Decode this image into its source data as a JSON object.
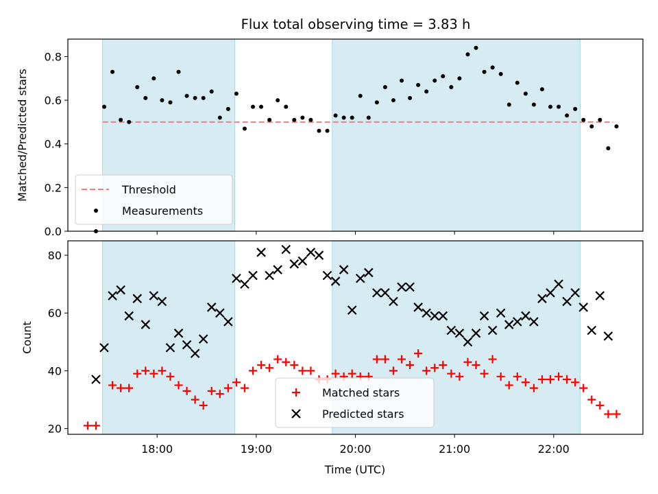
{
  "chart_data": [
    {
      "type": "scatter",
      "title": "Flux total observing time = 3.83 h",
      "xlabel": "",
      "ylabel": "Matched/Predicted stars",
      "xlim": [
        "17:06",
        "22:54"
      ],
      "ylim": [
        0,
        0.88
      ],
      "x_axis": "time (UTC)",
      "xticks": [
        "18:00",
        "19:00",
        "20:00",
        "21:00",
        "22:00"
      ],
      "yticks": [
        "0.0",
        "0.2",
        "0.4",
        "0.6",
        "0.8"
      ],
      "shaded_intervals": [
        [
          "17:27",
          "18:47"
        ],
        [
          "19:46",
          "22:16"
        ]
      ],
      "shade_color": "#add8e6",
      "legend_position": "lower left",
      "threshold": {
        "name": "Threshold",
        "value": 0.5,
        "range": [
          "17:27",
          "22:36"
        ],
        "color": "#f08080",
        "style": "dashed"
      },
      "series": [
        {
          "name": "Measurements",
          "color": "#000000",
          "marker": "dot",
          "points": [
            [
              "17:23",
              0.0
            ],
            [
              "17:28",
              0.57
            ],
            [
              "17:33",
              0.73
            ],
            [
              "17:38",
              0.51
            ],
            [
              "17:43",
              0.5
            ],
            [
              "17:48",
              0.66
            ],
            [
              "17:53",
              0.61
            ],
            [
              "17:58",
              0.7
            ],
            [
              "18:03",
              0.6
            ],
            [
              "18:08",
              0.59
            ],
            [
              "18:13",
              0.73
            ],
            [
              "18:18",
              0.62
            ],
            [
              "18:23",
              0.61
            ],
            [
              "18:28",
              0.61
            ],
            [
              "18:33",
              0.64
            ],
            [
              "18:38",
              0.52
            ],
            [
              "18:43",
              0.56
            ],
            [
              "18:48",
              0.63
            ],
            [
              "18:53",
              0.47
            ],
            [
              "18:58",
              0.57
            ],
            [
              "19:03",
              0.57
            ],
            [
              "19:08",
              0.51
            ],
            [
              "19:13",
              0.6
            ],
            [
              "19:18",
              0.57
            ],
            [
              "19:23",
              0.51
            ],
            [
              "19:28",
              0.52
            ],
            [
              "19:33",
              0.51
            ],
            [
              "19:38",
              0.46
            ],
            [
              "19:43",
              0.46
            ],
            [
              "19:48",
              0.53
            ],
            [
              "19:53",
              0.52
            ],
            [
              "19:58",
              0.52
            ],
            [
              "20:03",
              0.62
            ],
            [
              "20:08",
              0.52
            ],
            [
              "20:13",
              0.59
            ],
            [
              "20:18",
              0.66
            ],
            [
              "20:23",
              0.6
            ],
            [
              "20:28",
              0.69
            ],
            [
              "20:33",
              0.61
            ],
            [
              "20:38",
              0.67
            ],
            [
              "20:43",
              0.64
            ],
            [
              "20:48",
              0.69
            ],
            [
              "20:53",
              0.71
            ],
            [
              "20:58",
              0.66
            ],
            [
              "21:03",
              0.7
            ],
            [
              "21:08",
              0.81
            ],
            [
              "21:13",
              0.84
            ],
            [
              "21:18",
              0.73
            ],
            [
              "21:23",
              0.75
            ],
            [
              "21:28",
              0.72
            ],
            [
              "21:33",
              0.58
            ],
            [
              "21:38",
              0.68
            ],
            [
              "21:43",
              0.63
            ],
            [
              "21:48",
              0.58
            ],
            [
              "21:53",
              0.65
            ],
            [
              "21:58",
              0.57
            ],
            [
              "22:03",
              0.57
            ],
            [
              "22:08",
              0.53
            ],
            [
              "22:13",
              0.56
            ],
            [
              "22:18",
              0.51
            ],
            [
              "22:23",
              0.48
            ],
            [
              "22:28",
              0.51
            ],
            [
              "22:33",
              0.38
            ],
            [
              "22:38",
              0.48
            ]
          ]
        }
      ]
    },
    {
      "type": "scatter",
      "title": "",
      "xlabel": "Time (UTC)",
      "ylabel": "Count",
      "xlim": [
        "17:06",
        "22:54"
      ],
      "ylim": [
        18,
        85
      ],
      "x_axis": "time (UTC)",
      "xticks": [
        "18:00",
        "19:00",
        "20:00",
        "21:00",
        "22:00"
      ],
      "yticks": [
        "20",
        "40",
        "60",
        "80"
      ],
      "shaded_intervals": [
        [
          "17:27",
          "18:47"
        ],
        [
          "19:46",
          "22:16"
        ]
      ],
      "shade_color": "#add8e6",
      "legend_position": "lower center",
      "series": [
        {
          "name": "Matched stars",
          "color": "#ff0000",
          "marker": "plus",
          "points": [
            [
              "17:18",
              21
            ],
            [
              "17:23",
              21
            ],
            [
              "17:33",
              35
            ],
            [
              "17:38",
              34
            ],
            [
              "17:43",
              34
            ],
            [
              "17:48",
              39
            ],
            [
              "17:53",
              40
            ],
            [
              "17:58",
              39
            ],
            [
              "18:03",
              40
            ],
            [
              "18:08",
              38
            ],
            [
              "18:13",
              35
            ],
            [
              "18:18",
              33
            ],
            [
              "18:23",
              30
            ],
            [
              "18:28",
              28
            ],
            [
              "18:33",
              33
            ],
            [
              "18:38",
              32
            ],
            [
              "18:43",
              34
            ],
            [
              "18:48",
              36
            ],
            [
              "18:53",
              34
            ],
            [
              "18:58",
              40
            ],
            [
              "19:03",
              42
            ],
            [
              "19:08",
              41
            ],
            [
              "19:13",
              44
            ],
            [
              "19:18",
              43
            ],
            [
              "19:23",
              42
            ],
            [
              "19:28",
              40
            ],
            [
              "19:33",
              40
            ],
            [
              "19:38",
              37
            ],
            [
              "19:43",
              37
            ],
            [
              "19:48",
              39
            ],
            [
              "19:53",
              38
            ],
            [
              "19:58",
              39
            ],
            [
              "20:03",
              38
            ],
            [
              "20:08",
              38
            ],
            [
              "20:13",
              44
            ],
            [
              "20:18",
              44
            ],
            [
              "20:23",
              40
            ],
            [
              "20:28",
              44
            ],
            [
              "20:33",
              42
            ],
            [
              "20:38",
              46
            ],
            [
              "20:43",
              40
            ],
            [
              "20:48",
              41
            ],
            [
              "20:53",
              42
            ],
            [
              "20:58",
              39
            ],
            [
              "21:03",
              38
            ],
            [
              "21:08",
              43
            ],
            [
              "21:13",
              42
            ],
            [
              "21:18",
              39
            ],
            [
              "21:23",
              44
            ],
            [
              "21:28",
              38
            ],
            [
              "21:33",
              35
            ],
            [
              "21:38",
              38
            ],
            [
              "21:43",
              36
            ],
            [
              "21:48",
              34
            ],
            [
              "21:53",
              37
            ],
            [
              "21:58",
              37
            ],
            [
              "22:03",
              38
            ],
            [
              "22:08",
              37
            ],
            [
              "22:13",
              36
            ],
            [
              "22:18",
              34
            ],
            [
              "22:23",
              30
            ],
            [
              "22:28",
              28
            ],
            [
              "22:33",
              25
            ],
            [
              "22:38",
              25
            ]
          ]
        },
        {
          "name": "Predicted stars",
          "color": "#000000",
          "marker": "x",
          "points": [
            [
              "17:23",
              37
            ],
            [
              "17:28",
              48
            ],
            [
              "17:33",
              66
            ],
            [
              "17:38",
              68
            ],
            [
              "17:43",
              59
            ],
            [
              "17:48",
              65
            ],
            [
              "17:53",
              56
            ],
            [
              "17:58",
              66
            ],
            [
              "18:03",
              64
            ],
            [
              "18:08",
              48
            ],
            [
              "18:13",
              53
            ],
            [
              "18:18",
              49
            ],
            [
              "18:23",
              46
            ],
            [
              "18:28",
              51
            ],
            [
              "18:33",
              62
            ],
            [
              "18:38",
              60
            ],
            [
              "18:43",
              57
            ],
            [
              "18:48",
              72
            ],
            [
              "18:53",
              70
            ],
            [
              "18:58",
              73
            ],
            [
              "19:03",
              81
            ],
            [
              "19:08",
              73
            ],
            [
              "19:13",
              75
            ],
            [
              "19:18",
              82
            ],
            [
              "19:23",
              77
            ],
            [
              "19:28",
              78
            ],
            [
              "19:33",
              81
            ],
            [
              "19:38",
              80
            ],
            [
              "19:43",
              73
            ],
            [
              "19:48",
              71
            ],
            [
              "19:53",
              75
            ],
            [
              "19:58",
              61
            ],
            [
              "20:03",
              72
            ],
            [
              "20:08",
              74
            ],
            [
              "20:13",
              67
            ],
            [
              "20:18",
              67
            ],
            [
              "20:23",
              64
            ],
            [
              "20:28",
              69
            ],
            [
              "20:33",
              69
            ],
            [
              "20:38",
              62
            ],
            [
              "20:43",
              60
            ],
            [
              "20:48",
              59
            ],
            [
              "20:53",
              59
            ],
            [
              "20:58",
              54
            ],
            [
              "21:03",
              53
            ],
            [
              "21:08",
              50
            ],
            [
              "21:13",
              53
            ],
            [
              "21:18",
              59
            ],
            [
              "21:23",
              54
            ],
            [
              "21:28",
              60
            ],
            [
              "21:33",
              56
            ],
            [
              "21:38",
              57
            ],
            [
              "21:43",
              59
            ],
            [
              "21:48",
              57
            ],
            [
              "21:53",
              65
            ],
            [
              "21:58",
              67
            ],
            [
              "22:03",
              70
            ],
            [
              "22:08",
              64
            ],
            [
              "22:13",
              67
            ],
            [
              "22:18",
              62
            ],
            [
              "22:23",
              54
            ],
            [
              "22:28",
              66
            ],
            [
              "22:33",
              52
            ]
          ]
        }
      ]
    }
  ]
}
